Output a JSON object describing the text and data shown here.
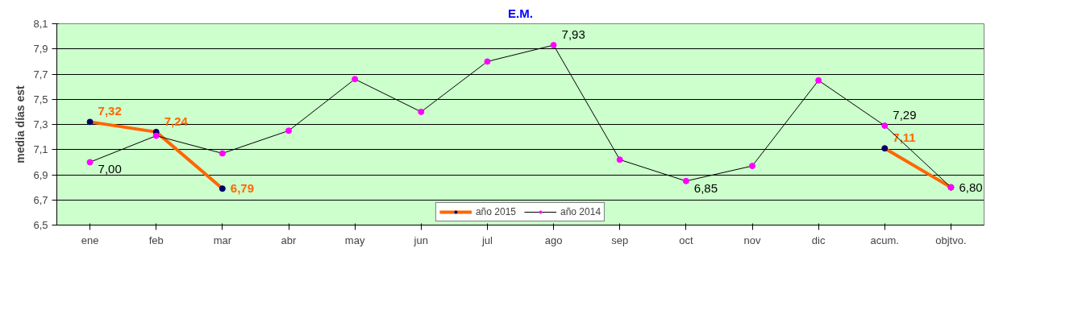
{
  "chart_data": {
    "type": "line",
    "title": "E.M.",
    "ylabel": "media días est",
    "categories": [
      "ene",
      "feb",
      "mar",
      "abr",
      "may",
      "jun",
      "jul",
      "ago",
      "sep",
      "oct",
      "nov",
      "dic",
      "acum.",
      "objtvo."
    ],
    "series": [
      {
        "name": "año 2015",
        "color": "#ff6600",
        "values": [
          7.32,
          7.24,
          6.79,
          null,
          null,
          null,
          null,
          null,
          null,
          null,
          null,
          null,
          7.11,
          6.8
        ],
        "value_labels": [
          "7,32",
          "7,24",
          "6,79",
          null,
          null,
          null,
          null,
          null,
          null,
          null,
          null,
          null,
          "7,11",
          null
        ]
      },
      {
        "name": "año 2014",
        "color": "#000000",
        "values": [
          7.0,
          7.21,
          7.07,
          7.25,
          7.66,
          7.4,
          7.8,
          7.93,
          7.02,
          6.85,
          6.97,
          7.65,
          7.29,
          6.8
        ],
        "value_labels": [
          "7,00",
          null,
          null,
          null,
          null,
          null,
          null,
          "7,93",
          null,
          "6,85",
          null,
          null,
          "7,29",
          "6,80"
        ]
      }
    ],
    "ylim": [
      6.5,
      8.1
    ],
    "yticks": [
      {
        "value": 6.5,
        "label": "6,5"
      },
      {
        "value": 6.7,
        "label": "6,7"
      },
      {
        "value": 6.9,
        "label": "6,9"
      },
      {
        "value": 7.1,
        "label": "7,1"
      },
      {
        "value": 7.3,
        "label": "7,3"
      },
      {
        "value": 7.5,
        "label": "7,5"
      },
      {
        "value": 7.7,
        "label": "7,7"
      },
      {
        "value": 7.9,
        "label": "7,9"
      },
      {
        "value": 8.1,
        "label": "8,1"
      }
    ],
    "grid": "y",
    "legend": "bottom",
    "marker": "circle"
  }
}
